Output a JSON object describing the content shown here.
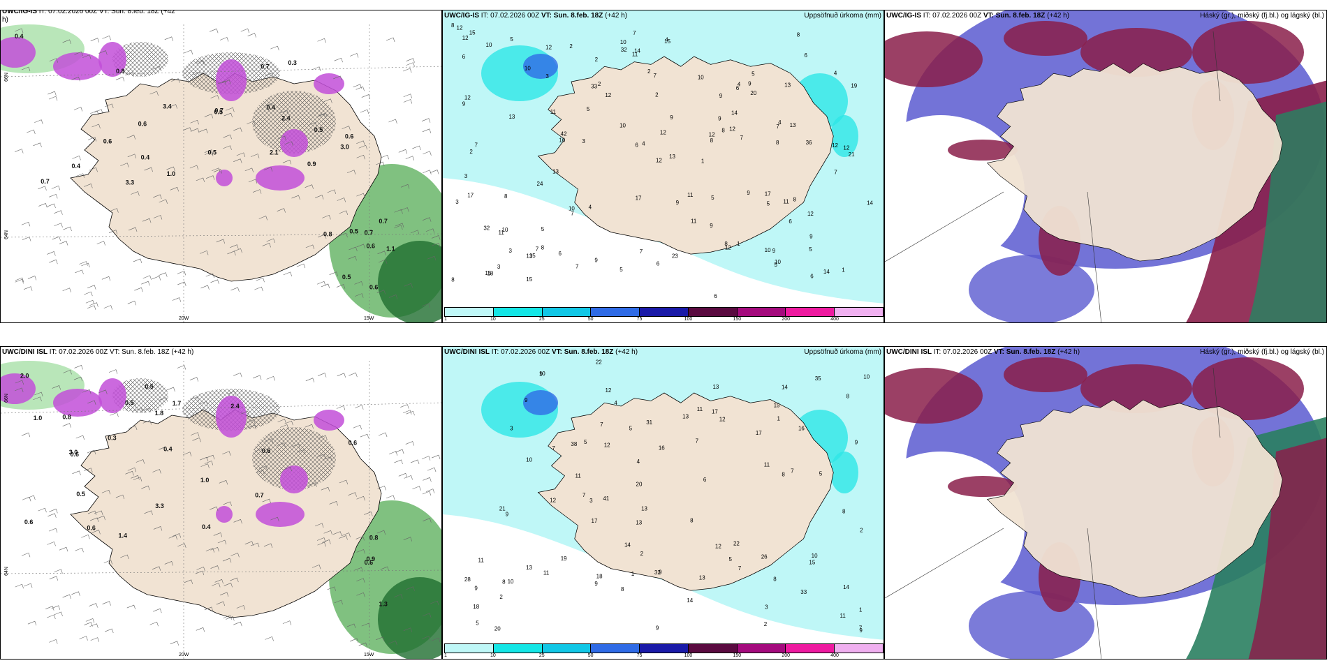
{
  "colors": {
    "land": "#f1e3d3",
    "precip_light": "#bff7f7",
    "precip_mid": "#2ee6e6",
    "sea_white": "#ffffff",
    "low_cloud": "#5a5ad0",
    "mid_cloud": "#8a1f4a",
    "high_cloud_green": "#2a8060",
    "snow_purple": "#c24fd8",
    "rain_green": "#7fd17f"
  },
  "rows": [
    {
      "model": "UWC/IG-IS",
      "init": "IT: 07.02.2026 00Z",
      "valid": "VT: Sun. 8.feb. 18Z",
      "lead": "(+42 h)",
      "left_title_model": "UWC/IG-IS",
      "left_title_rest": "IT: 07.02.2026 00Z VT: Sun. 8.feb. 18Z (+42",
      "left_title_wrap": "h)",
      "precip_label": "Uppsöfnuð úrkoma (mm)",
      "cloud_label": "Háský (gr.), miðský (fj.bl.) og lágský (bl.)",
      "precip_values": [
        "8",
        "8",
        "6",
        "5",
        "6",
        "3",
        "3",
        "11",
        "10",
        "9",
        "8",
        "13",
        "9",
        "12",
        "7",
        "19",
        "15",
        "14",
        "12",
        "17",
        "32",
        "42",
        "7",
        "7",
        "8",
        "7",
        "8",
        "9",
        "5",
        "4",
        "11",
        "17",
        "12",
        "9",
        "18",
        "12",
        "6",
        "3",
        "2",
        "5",
        "5",
        "2",
        "5",
        "9",
        "2",
        "15",
        "7",
        "10",
        "6",
        "12",
        "8",
        "14",
        "10",
        "23",
        "12",
        "36",
        "21",
        "24",
        "15",
        "33",
        "32",
        "9",
        "9",
        "8",
        "13",
        "7",
        "12",
        "8",
        "15",
        "12",
        "13",
        "5",
        "10",
        "11",
        "5",
        "6",
        "14",
        "12",
        "11",
        "12",
        "14",
        "6",
        "15",
        "6",
        "4",
        "13",
        "9",
        "16",
        "12",
        "7",
        "11",
        "13",
        "4",
        "9",
        "5",
        "10",
        "8",
        "9",
        "7",
        "4",
        "10",
        "20",
        "6",
        "5",
        "6",
        "10",
        "9",
        "1",
        "2",
        "7",
        "3",
        "4",
        "3",
        "10",
        "10",
        "17",
        "12",
        "12",
        "13",
        "7",
        "1",
        "2",
        "1",
        "3",
        "2",
        "4",
        "8",
        "11"
      ],
      "snow_values": [
        "0.4",
        "1.0",
        "3.0",
        "3.4",
        "2.1",
        "3.3",
        "0.6",
        "0.5",
        "0.7",
        "2.4",
        "0.8",
        "0.9",
        "0.4",
        "0.7",
        "0.6",
        "0.5",
        "0.7",
        "0.4",
        "0.3",
        "0.4",
        "0.6",
        "0.5",
        "0.6",
        "0.6",
        "0.7",
        "0.7",
        "1.1",
        "0.8",
        "0.5",
        "0.5"
      ],
      "lon_labels": [
        "20W",
        "15W"
      ],
      "lat_labels": [
        "66N",
        "64N"
      ]
    },
    {
      "model": "UWC/DINI ISL",
      "init": "IT: 07.02.2026 00Z",
      "valid": "VT: Sun. 8.feb. 18Z",
      "lead": "(+42 h)",
      "left_title_model": "UWC/DINI ISL",
      "left_title_rest": "IT: 07.02.2026 00Z VT: Sun. 8.feb. 18Z (+42 h)",
      "left_title_wrap": "",
      "precip_label": "Uppsöfnuð úrkoma (mm)",
      "cloud_label": "Háský (gr.), miðský (fj.bl.) og lágský (bl.)",
      "precip_values": [
        "13",
        "10",
        "10",
        "9",
        "7",
        "5",
        "4",
        "15",
        "20",
        "22",
        "38",
        "41",
        "26",
        "17",
        "16",
        "11",
        "21",
        "10",
        "8",
        "6",
        "9",
        "9",
        "11",
        "12",
        "13",
        "22",
        "31",
        "13",
        "18",
        "33",
        "32",
        "20",
        "17",
        "14",
        "12",
        "9",
        "12",
        "8",
        "13",
        "16",
        "28",
        "14",
        "35",
        "9",
        "8",
        "7",
        "9",
        "11",
        "14",
        "11",
        "13",
        "19",
        "13",
        "12",
        "7",
        "11",
        "8",
        "11",
        "8",
        "7",
        "2",
        "1",
        "2",
        "3",
        "5",
        "17",
        "9",
        "12",
        "14",
        "10",
        "9",
        "8",
        "7",
        "5",
        "3",
        "2",
        "2",
        "5",
        "5",
        "4",
        "9",
        "18",
        "15",
        "10",
        "7",
        "8",
        "7",
        "3",
        "1",
        "1"
      ],
      "snow_values": [
        "0.4",
        "0.5",
        "0.6",
        "2.4",
        "3.3",
        "3.0",
        "1.8",
        "1.7",
        "0.6",
        "0.8",
        "1.0",
        "1.4",
        "2.0",
        "0.5",
        "0.6",
        "0.5",
        "0.3",
        "0.4",
        "0.6",
        "1.0",
        "0.6",
        "0.7",
        "0.9",
        "0.8",
        "0.6",
        "1.3"
      ],
      "lon_labels": [
        "20W",
        "15W"
      ],
      "lat_labels": [
        "66N",
        "64N"
      ]
    }
  ],
  "colorbar": {
    "ticks": [
      "1",
      "10",
      "25",
      "50",
      "75",
      "100",
      "150",
      "200",
      "400"
    ],
    "colors": [
      "#bff7f7",
      "#14e6e6",
      "#11c7e6",
      "#2f6be6",
      "#1a1aa8",
      "#5a0a40",
      "#a40a7d",
      "#ee1aa0",
      "#f0b0f0"
    ]
  }
}
